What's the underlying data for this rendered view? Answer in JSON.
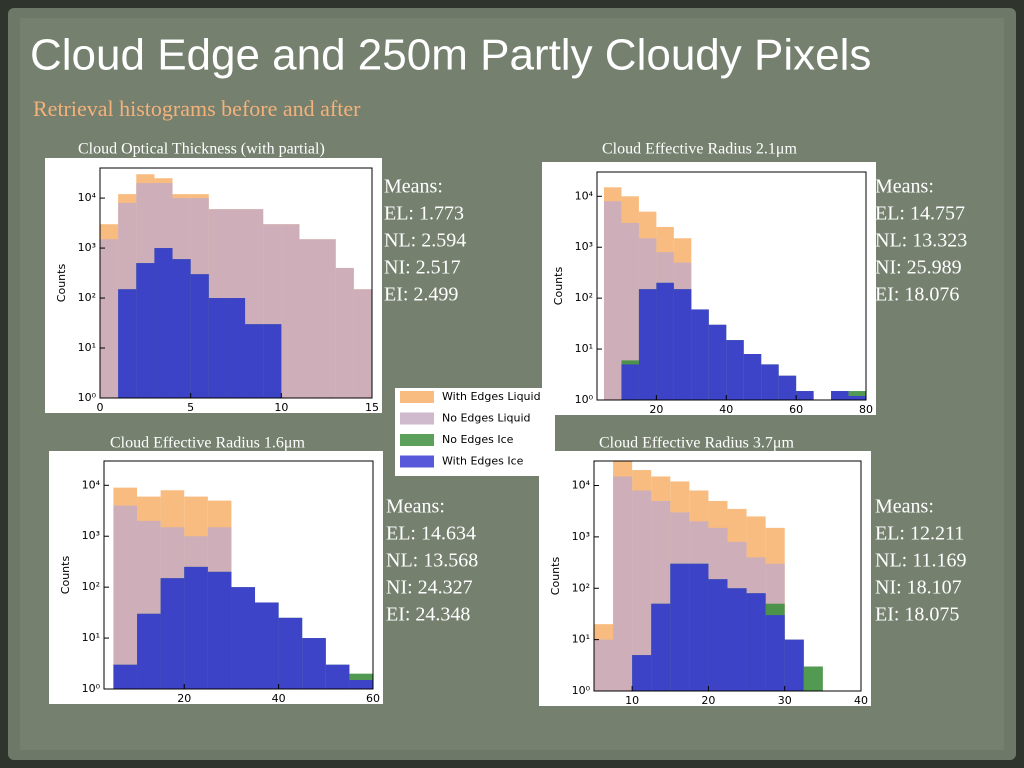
{
  "slide": {
    "title": "Cloud Edge and 250m Partly Cloudy Pixels",
    "subtitle": "Retrieval histograms before and after"
  },
  "chart_data": [
    {
      "type": "histogram",
      "title": "Cloud Optical Thickness (with partial)",
      "y_label": "Counts",
      "log_y": true,
      "xlim": [
        0,
        15
      ],
      "xticks": [
        0,
        5,
        10,
        15
      ],
      "ylim": [
        1,
        40000
      ],
      "yticks": [
        {
          "value": 1,
          "label": "10⁰"
        },
        {
          "value": 10,
          "label": "10¹"
        },
        {
          "value": 100,
          "label": "10²"
        },
        {
          "value": 1000,
          "label": "10³"
        },
        {
          "value": 10000,
          "label": "10⁴"
        }
      ],
      "bins": [
        0,
        1,
        2,
        3,
        4,
        5,
        6,
        7,
        8,
        9,
        10,
        11,
        12,
        13,
        14,
        15
      ],
      "series": [
        {
          "name": "With Edges Liquid",
          "color": "#f7b06a",
          "values": [
            3000,
            12000,
            30000,
            25000,
            12000,
            12000,
            6000,
            6000,
            6000,
            3000,
            3000,
            1500,
            1500,
            400,
            150
          ]
        },
        {
          "name": "No Edges Liquid",
          "color": "#c7adc3",
          "values": [
            1500,
            8000,
            20000,
            20000,
            10000,
            10000,
            6000,
            6000,
            6000,
            3000,
            3000,
            1500,
            1500,
            400,
            150
          ]
        },
        {
          "name": "No Edges Ice",
          "color": "#3f8f3f",
          "values": [
            0,
            150,
            500,
            1000,
            600,
            300,
            100,
            100,
            30,
            30,
            0,
            0,
            0,
            0,
            0
          ]
        },
        {
          "name": "With Edges Ice",
          "color": "#3b3bd4",
          "values": [
            0,
            150,
            500,
            1000,
            600,
            300,
            100,
            100,
            30,
            30,
            0,
            0,
            0,
            0,
            0
          ]
        }
      ],
      "means": [
        "Means:",
        "EL: 1.773",
        "NL: 2.594",
        "NI: 2.517",
        "EI: 2.499"
      ]
    },
    {
      "type": "histogram",
      "title": "Cloud Effective Radius 2.1μm",
      "y_label": "Counts",
      "log_y": true,
      "xlim": [
        3,
        80
      ],
      "xticks": [
        20,
        40,
        60,
        80
      ],
      "ylim": [
        1,
        30000
      ],
      "yticks": [
        {
          "value": 1,
          "label": "10⁰"
        },
        {
          "value": 10,
          "label": "10¹"
        },
        {
          "value": 100,
          "label": "10²"
        },
        {
          "value": 1000,
          "label": "10³"
        },
        {
          "value": 10000,
          "label": "10⁴"
        }
      ],
      "bins": [
        5,
        10,
        15,
        20,
        25,
        30,
        35,
        40,
        45,
        50,
        55,
        60,
        65,
        70,
        75,
        80
      ],
      "series": [
        {
          "values": [
            15000,
            10000,
            5000,
            2500,
            1500,
            0,
            0,
            0,
            0,
            0,
            0,
            0,
            0,
            0,
            0
          ]
        },
        {
          "values": [
            8000,
            3000,
            1500,
            800,
            500,
            0,
            0,
            0,
            0,
            0,
            0,
            0,
            0,
            0,
            0
          ]
        },
        {
          "values": [
            0,
            6,
            150,
            200,
            150,
            60,
            30,
            15,
            8,
            5,
            3,
            1.5,
            1,
            1.5,
            1.5
          ]
        },
        {
          "values": [
            0,
            5,
            150,
            200,
            150,
            60,
            30,
            15,
            8,
            5,
            3,
            1.5,
            1,
            1.5,
            1.2
          ]
        }
      ],
      "means": [
        "Means:",
        "EL: 14.757",
        "NL: 13.323",
        "NI: 25.989",
        "EI: 18.076"
      ]
    },
    {
      "type": "histogram",
      "title": "Cloud Effective Radius 1.6μm",
      "y_label": "Counts",
      "log_y": true,
      "xlim": [
        3,
        60
      ],
      "xticks": [
        20,
        40,
        60
      ],
      "ylim": [
        1,
        30000
      ],
      "yticks": [
        {
          "value": 1,
          "label": "10⁰"
        },
        {
          "value": 10,
          "label": "10¹"
        },
        {
          "value": 100,
          "label": "10²"
        },
        {
          "value": 1000,
          "label": "10³"
        },
        {
          "value": 10000,
          "label": "10⁴"
        }
      ],
      "bins": [
        5,
        10,
        15,
        20,
        25,
        30,
        35,
        40,
        45,
        50,
        55,
        60
      ],
      "series": [
        {
          "values": [
            9000,
            6000,
            8000,
            6000,
            5000,
            0,
            0,
            0,
            0,
            0,
            0
          ]
        },
        {
          "values": [
            4000,
            2000,
            1500,
            1000,
            1500,
            0,
            0,
            0,
            0,
            0,
            0
          ]
        },
        {
          "values": [
            3,
            30,
            150,
            250,
            200,
            100,
            50,
            25,
            10,
            3,
            2
          ]
        },
        {
          "values": [
            3,
            30,
            150,
            250,
            200,
            100,
            50,
            25,
            10,
            3,
            1.5
          ]
        }
      ],
      "means": [
        "Means:",
        "EL: 14.634",
        "NL: 13.568",
        "NI: 24.327",
        "EI: 24.348"
      ]
    },
    {
      "type": "histogram",
      "title": "Cloud Effective Radius 3.7μm",
      "y_label": "Counts",
      "log_y": true,
      "xlim": [
        5,
        40
      ],
      "xticks": [
        10,
        20,
        30,
        40
      ],
      "ylim": [
        1,
        30000
      ],
      "yticks": [
        {
          "value": 1,
          "label": "10⁰"
        },
        {
          "value": 10,
          "label": "10¹"
        },
        {
          "value": 100,
          "label": "10²"
        },
        {
          "value": 1000,
          "label": "10³"
        },
        {
          "value": 10000,
          "label": "10⁴"
        }
      ],
      "bins": [
        5,
        7.5,
        10,
        12.5,
        15,
        17.5,
        20,
        22.5,
        25,
        27.5,
        30,
        32.5,
        35,
        37.5,
        40
      ],
      "series": [
        {
          "values": [
            20,
            30000,
            20000,
            15000,
            12000,
            8000,
            5000,
            3500,
            2500,
            1500,
            0,
            0,
            0,
            0
          ]
        },
        {
          "values": [
            10,
            15000,
            8000,
            5000,
            3000,
            2000,
            1500,
            800,
            400,
            300,
            0,
            0,
            0,
            0
          ]
        },
        {
          "values": [
            0,
            0,
            5,
            50,
            300,
            300,
            150,
            100,
            80,
            50,
            10,
            3,
            0,
            0
          ]
        },
        {
          "values": [
            0,
            0,
            5,
            50,
            300,
            300,
            150,
            100,
            80,
            30,
            10,
            0,
            0,
            0
          ]
        }
      ],
      "means": [
        "Means:",
        "EL: 12.211",
        "NL: 11.169",
        "NI: 18.107",
        "EI: 18.075"
      ]
    }
  ]
}
